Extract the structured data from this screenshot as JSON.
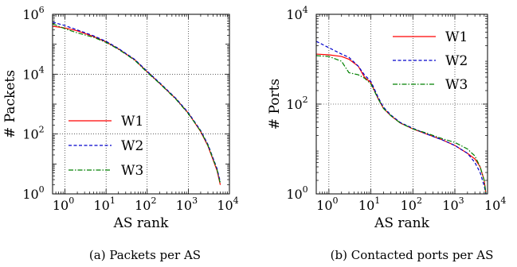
{
  "chart_data": [
    {
      "type": "line",
      "caption": "(a) Packets per AS",
      "title": "",
      "xlabel": "AS rank",
      "ylabel": "# Packets",
      "xscale": "log",
      "yscale": "log",
      "xlim": [
        0.5,
        10000
      ],
      "ylim": [
        1,
        1000000
      ],
      "xticks": [
        1,
        10,
        100,
        1000,
        10000
      ],
      "xtick_labels": [
        {
          "base": "10",
          "exp": "0"
        },
        {
          "base": "10",
          "exp": "1"
        },
        {
          "base": "10",
          "exp": "2"
        },
        {
          "base": "10",
          "exp": "3"
        },
        {
          "base": "10",
          "exp": "4"
        }
      ],
      "yticks": [
        1,
        100,
        10000,
        1000000
      ],
      "ytick_labels": [
        {
          "base": "10",
          "exp": "0"
        },
        {
          "base": "10",
          "exp": "2"
        },
        {
          "base": "10",
          "exp": "4"
        },
        {
          "base": "10",
          "exp": "6"
        }
      ],
      "grid": true,
      "legend_position": "lower-left",
      "series": [
        {
          "name": "W1",
          "color": "#ff0000",
          "dash": "solid",
          "x": [
            0.5,
            1,
            2,
            5,
            10,
            20,
            50,
            100,
            200,
            500,
            1000,
            2000,
            3000,
            5000,
            6000
          ],
          "y": [
            400000,
            350000,
            280000,
            180000,
            120000,
            70000,
            30000,
            12000,
            5000,
            1500,
            500,
            120,
            40,
            6,
            2
          ]
        },
        {
          "name": "W2",
          "color": "#0000cc",
          "dash": "dashed",
          "x": [
            0.5,
            1,
            2,
            5,
            10,
            20,
            50,
            100,
            200,
            500,
            1000,
            2000,
            3000,
            5000,
            6000
          ],
          "y": [
            550000,
            420000,
            300000,
            190000,
            125000,
            72000,
            31000,
            12500,
            5200,
            1550,
            520,
            130,
            45,
            7,
            2.5
          ]
        },
        {
          "name": "W3",
          "color": "#008000",
          "dash": "dashdot",
          "x": [
            0.5,
            1,
            2,
            5,
            10,
            20,
            50,
            100,
            200,
            500,
            1000,
            2000,
            3000,
            5000,
            6000
          ],
          "y": [
            480000,
            330000,
            240000,
            170000,
            115000,
            68000,
            29000,
            11500,
            4900,
            1450,
            480,
            125,
            42,
            6.5,
            2.2
          ]
        }
      ]
    },
    {
      "type": "line",
      "caption": "(b) Contacted ports per AS",
      "title": "",
      "xlabel": "AS rank",
      "ylabel": "# Ports",
      "xscale": "log",
      "yscale": "log",
      "xlim": [
        0.5,
        6000
      ],
      "ylim": [
        1,
        10000
      ],
      "xticks": [
        1,
        10,
        100,
        1000,
        10000
      ],
      "xtick_labels": [
        {
          "base": "10",
          "exp": "0"
        },
        {
          "base": "10",
          "exp": "1"
        },
        {
          "base": "10",
          "exp": "2"
        },
        {
          "base": "10",
          "exp": "3"
        },
        {
          "base": "10",
          "exp": "4"
        }
      ],
      "yticks": [
        1,
        100,
        10000
      ],
      "ytick_labels": [
        {
          "base": "10",
          "exp": "0"
        },
        {
          "base": "10",
          "exp": "2"
        },
        {
          "base": "10",
          "exp": "4"
        }
      ],
      "grid": true,
      "legend_position": "upper-right",
      "series": [
        {
          "name": "W1",
          "color": "#ff0000",
          "dash": "solid",
          "x": [
            0.5,
            1,
            2,
            3,
            5,
            7,
            10,
            15,
            20,
            30,
            50,
            100,
            200,
            500,
            1000,
            2000,
            3000,
            4000,
            5000,
            5500
          ],
          "y": [
            1300,
            1250,
            1150,
            1000,
            700,
            400,
            300,
            130,
            80,
            55,
            38,
            28,
            22,
            16,
            12,
            8,
            6,
            4,
            2,
            1
          ]
        },
        {
          "name": "W2",
          "color": "#0000cc",
          "dash": "dashed",
          "x": [
            0.5,
            1,
            2,
            3,
            5,
            7,
            10,
            15,
            20,
            30,
            50,
            100,
            200,
            500,
            1000,
            2000,
            3000,
            4000,
            5000,
            5500
          ],
          "y": [
            2500,
            1800,
            1300,
            1100,
            700,
            450,
            320,
            140,
            85,
            57,
            39,
            29,
            22,
            16,
            12,
            8,
            5,
            3,
            1.5,
            1
          ]
        },
        {
          "name": "W3",
          "color": "#008000",
          "dash": "dashdot",
          "x": [
            0.5,
            1,
            2,
            3,
            5,
            7,
            10,
            15,
            20,
            30,
            50,
            100,
            200,
            500,
            1000,
            2000,
            3000,
            4000,
            5000,
            5500
          ],
          "y": [
            1200,
            1150,
            900,
            500,
            450,
            380,
            280,
            130,
            80,
            55,
            38,
            28,
            23,
            17,
            14,
            10,
            7,
            4,
            2,
            1
          ]
        }
      ]
    }
  ]
}
